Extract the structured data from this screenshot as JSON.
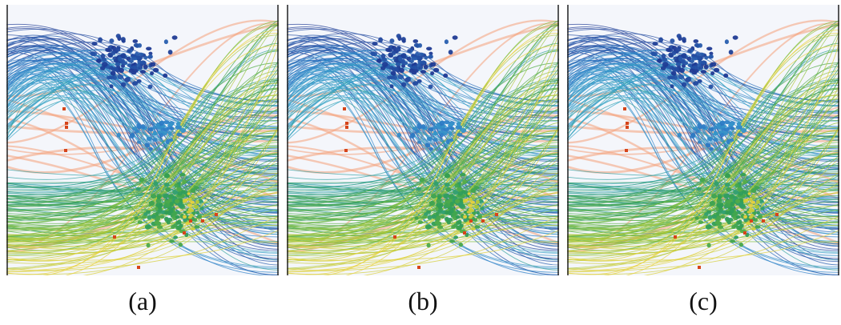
{
  "figure": {
    "panels": [
      {
        "caption": "(a)"
      },
      {
        "caption": "(b)"
      },
      {
        "caption": "(c)"
      }
    ]
  },
  "colors": {
    "background": "#f4f6fb",
    "axis": "#222222",
    "ramp": [
      "#1f3a93",
      "#2f7fc8",
      "#3aa6c9",
      "#2f9d55",
      "#7fbf3a",
      "#e8d23a"
    ],
    "highlight": "#f4a07a",
    "highlight_dot": "#d6451b"
  }
}
